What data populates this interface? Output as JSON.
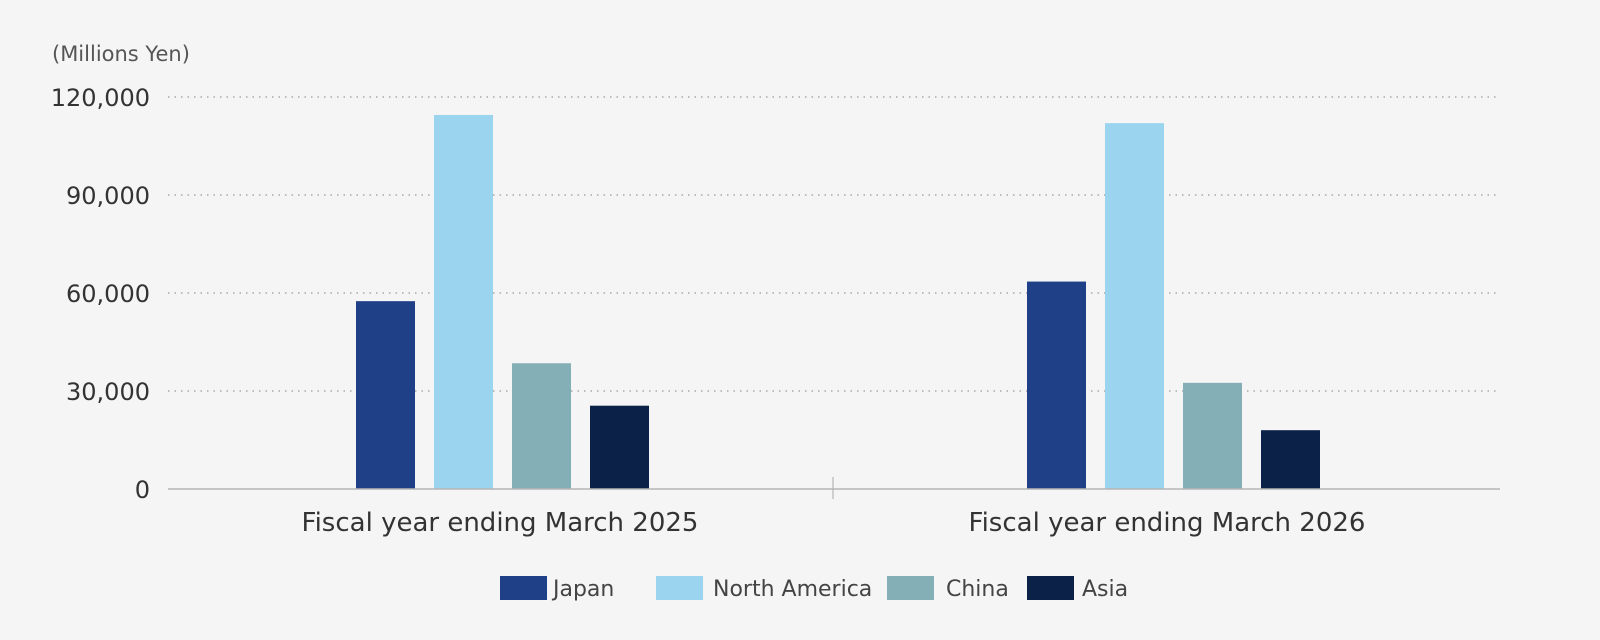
{
  "chart_data": {
    "type": "bar",
    "unit_label": "(Millions Yen)",
    "categories": [
      "Fiscal year ending March 2025",
      "Fiscal year ending March 2026"
    ],
    "series": [
      {
        "name": "Japan",
        "color": "#1f3f87",
        "values": [
          57500,
          63500
        ]
      },
      {
        "name": "North America",
        "color": "#9ad4ef",
        "values": [
          114500,
          112000
        ]
      },
      {
        "name": "China",
        "color": "#85afb6",
        "values": [
          38500,
          32500
        ]
      },
      {
        "name": "Asia",
        "color": "#0b2148",
        "values": [
          25500,
          18000
        ]
      }
    ],
    "ylim": [
      0,
      120000
    ],
    "yticks": [
      0,
      30000,
      60000,
      90000,
      120000
    ],
    "ytick_labels": [
      "0",
      "30,000",
      "60,000",
      "90,000",
      "120,000"
    ],
    "grid": true,
    "legend_position": "bottom"
  }
}
